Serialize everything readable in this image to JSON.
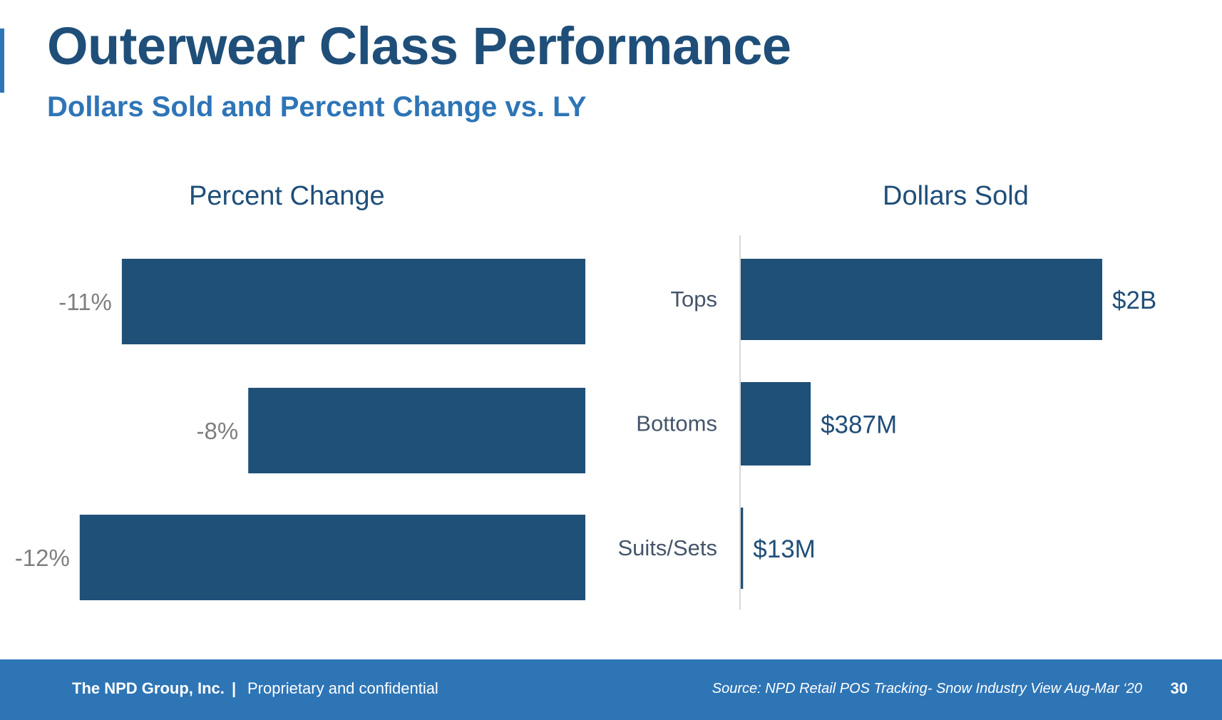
{
  "header": {
    "title": "Outerwear Class Performance",
    "subtitle": "Dollars Sold and Percent Change vs. LY"
  },
  "chart_data": [
    {
      "type": "bar",
      "orientation": "horizontal",
      "title": "Percent Change",
      "categories": [
        "Tops",
        "Bottoms",
        "Suits/Sets"
      ],
      "values": [
        -11,
        -8,
        -12
      ],
      "labels": [
        "-11%",
        "-8%",
        "-12%"
      ],
      "unit": "%",
      "color": "#1f5078"
    },
    {
      "type": "bar",
      "orientation": "horizontal",
      "title": "Dollars Sold",
      "categories": [
        "Tops",
        "Bottoms",
        "Suits/Sets"
      ],
      "values": [
        2000,
        387,
        13
      ],
      "labels": [
        "$2B",
        "$387M",
        "$13M"
      ],
      "unit": "$M",
      "color": "#1f5078"
    }
  ],
  "footer": {
    "company": "The NPD Group, Inc.",
    "separator": "|",
    "confidential": "Proprietary and confidential",
    "source": "Source: NPD Retail POS Tracking- Snow Industry View Aug-Mar ‘20",
    "page_number": "30"
  },
  "colors": {
    "title": "#1f4e79",
    "subtitle": "#2e75b6",
    "bar": "#1f5078",
    "footer_bg": "#2e75b6",
    "value_label_pct": "#7f7f7f",
    "category_label": "#44546a"
  }
}
